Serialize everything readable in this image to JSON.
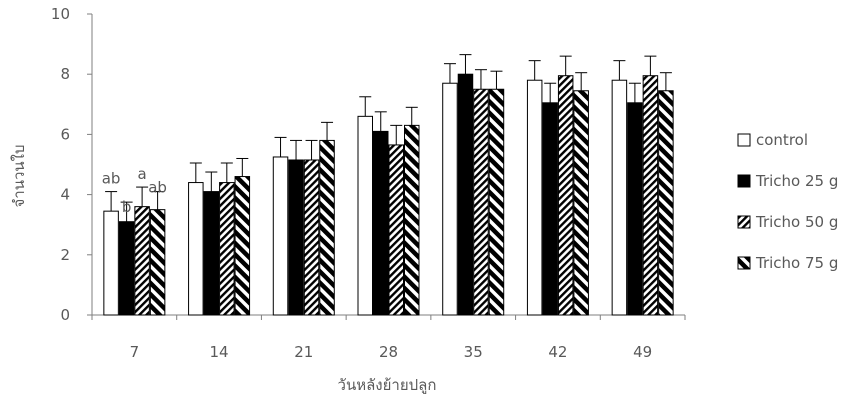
{
  "chart_data": {
    "type": "bar",
    "title": "",
    "xlabel": "วันหลังย้ายปลูก",
    "ylabel": "จำนวนใบ",
    "ylim": [
      0,
      10
    ],
    "yticks": [
      0,
      2,
      4,
      6,
      8,
      10
    ],
    "grid": false,
    "legend_position": "right",
    "categories": [
      "7",
      "14",
      "21",
      "28",
      "35",
      "42",
      "49"
    ],
    "series": [
      {
        "name": "control",
        "fill": "white",
        "values": [
          3.45,
          4.4,
          5.25,
          6.6,
          7.7,
          7.8,
          7.8
        ],
        "errors": [
          0.65,
          0.65,
          0.65,
          0.65,
          0.65,
          0.65,
          0.65
        ]
      },
      {
        "name": "Tricho 25 g",
        "fill": "black",
        "values": [
          3.1,
          4.1,
          5.15,
          6.1,
          8.0,
          7.05,
          7.05
        ],
        "errors": [
          0.65,
          0.65,
          0.65,
          0.65,
          0.65,
          0.65,
          0.65
        ]
      },
      {
        "name": "Tricho 50 g",
        "fill": "dense-diagonal",
        "values": [
          3.6,
          4.4,
          5.15,
          5.65,
          7.5,
          7.95,
          7.95
        ],
        "errors": [
          0.65,
          0.65,
          0.65,
          0.65,
          0.65,
          0.65,
          0.65
        ]
      },
      {
        "name": "Tricho 75 g",
        "fill": "wide-diagonal",
        "values": [
          3.5,
          4.6,
          5.8,
          6.3,
          7.5,
          7.45,
          7.45
        ],
        "errors": [
          0.6,
          0.6,
          0.6,
          0.6,
          0.6,
          0.6,
          0.6
        ]
      }
    ],
    "annotations": [
      {
        "category": "7",
        "series": 0,
        "text": "ab"
      },
      {
        "category": "7",
        "series": 1,
        "text": "b"
      },
      {
        "category": "7",
        "series": 2,
        "text": "a"
      },
      {
        "category": "7",
        "series": 3,
        "text": "ab"
      }
    ],
    "colors": {
      "axis": "#7f7f7f",
      "text": "#595959",
      "bar_stroke": "#000000"
    }
  }
}
